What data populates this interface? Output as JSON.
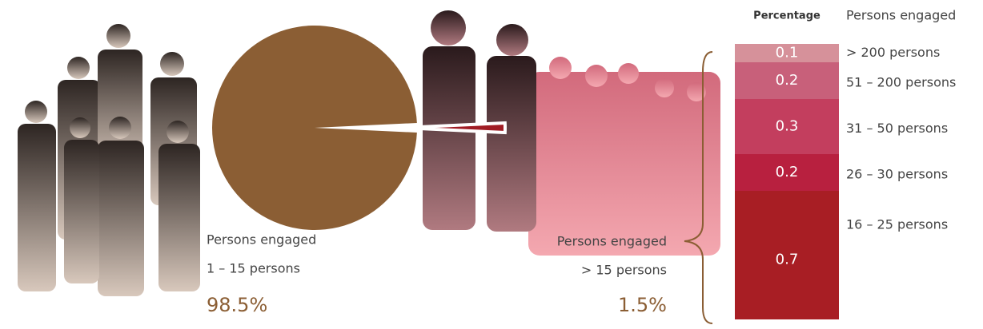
{
  "chart_data": [
    {
      "type": "pie",
      "category_title": "Persons engaged",
      "categories": [
        "1 – 15 persons",
        "> 15 persons"
      ],
      "values": [
        98.5,
        1.5
      ],
      "value_labels": [
        "98.5%",
        "1.5%"
      ],
      "colors": [
        "#8b5e34",
        "#a01c24"
      ]
    },
    {
      "type": "stacked-bar",
      "value_title": "Percentage",
      "category_title": "Persons engaged",
      "categories": [
        "> 200 persons",
        "51 – 200 persons",
        "31 – 50 persons",
        "26 – 30 persons",
        "16 – 25 persons"
      ],
      "values": [
        0.1,
        0.2,
        0.3,
        0.2,
        0.7
      ],
      "colors": [
        "#d6919a",
        "#c8607a",
        "#c33e5e",
        "#b8203f",
        "#a81e24"
      ]
    }
  ]
}
